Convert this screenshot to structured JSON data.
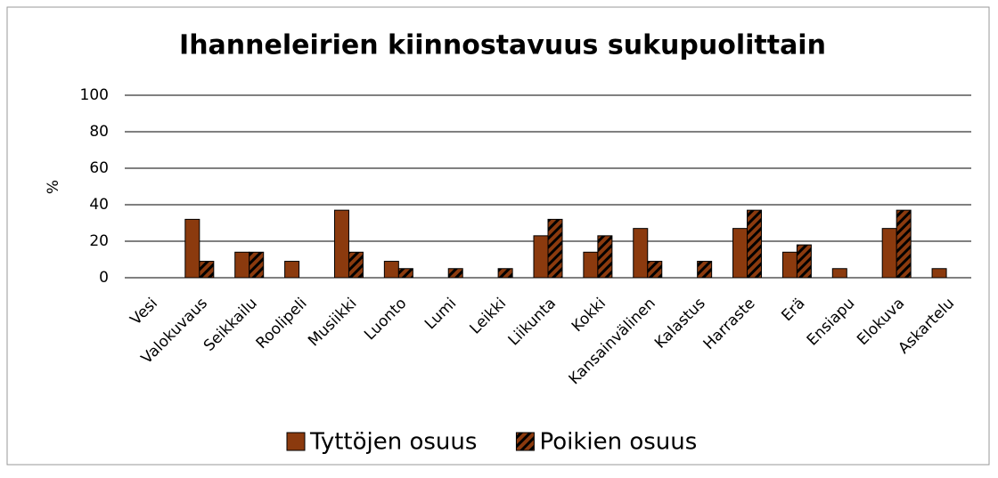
{
  "chart_data": {
    "type": "bar",
    "title": "Ihanneleirien kiinnostavuus sukupuolittain",
    "y_label": "%",
    "categories": [
      "Vesi",
      "Valokuvaus",
      "Seikkailu",
      "Roolipeli",
      "Musiikki",
      "Luonto",
      "Lumi",
      "Leikki",
      "Liikunta",
      "Kokki",
      "Kansainvälinen",
      "Kalastus",
      "Harraste",
      "Erä",
      "Ensiapu",
      "Elokuva",
      "Askartelu"
    ],
    "series": [
      {
        "name": "Tyttöjen osuus",
        "color": "#8b3a0e",
        "pattern": "solid",
        "values": [
          0,
          32,
          14,
          9,
          37,
          9,
          0,
          0,
          23,
          14,
          27,
          0,
          27,
          14,
          5,
          27,
          5
        ]
      },
      {
        "name": "Poikien osuus",
        "color": "#8b3a0e",
        "pattern": "hatched",
        "values": [
          0,
          9,
          14,
          0,
          14,
          5,
          5,
          5,
          32,
          23,
          9,
          9,
          37,
          18,
          0,
          37,
          0
        ]
      }
    ],
    "ylim": [
      0,
      100
    ],
    "yticks": [
      0,
      20,
      40,
      60,
      80,
      100
    ],
    "grid": true,
    "legend": "bottom"
  }
}
